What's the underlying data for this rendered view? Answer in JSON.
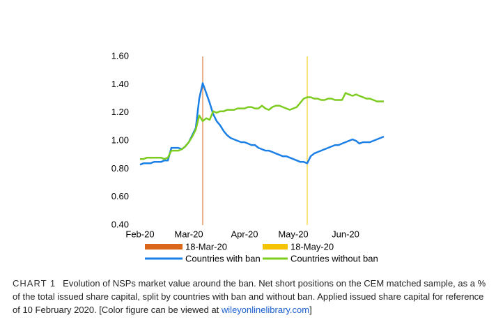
{
  "chart_data": {
    "type": "line",
    "categories": [
      "Feb-20",
      null,
      null,
      null,
      null,
      null,
      null,
      null,
      null,
      null,
      null,
      null,
      null,
      null,
      "Mar-20",
      null,
      null,
      null,
      null,
      null,
      null,
      null,
      null,
      null,
      null,
      null,
      null,
      null,
      null,
      null,
      "Apr-20",
      null,
      null,
      null,
      null,
      null,
      null,
      null,
      null,
      null,
      null,
      null,
      null,
      null,
      "May-20",
      null,
      null,
      null,
      null,
      null,
      null,
      null,
      null,
      null,
      null,
      null,
      null,
      null,
      null,
      "Jun-20",
      null,
      null,
      null,
      null,
      null,
      null,
      null,
      null,
      null,
      null,
      null
    ],
    "series": [
      {
        "name": "Countries with ban",
        "color": "#1a7fe6",
        "values": [
          0.83,
          0.84,
          0.84,
          0.84,
          0.85,
          0.85,
          0.85,
          0.86,
          0.86,
          0.95,
          0.95,
          0.95,
          0.94,
          0.96,
          0.99,
          1.04,
          1.09,
          1.3,
          1.41,
          1.34,
          1.27,
          1.19,
          1.14,
          1.11,
          1.07,
          1.04,
          1.02,
          1.01,
          1.0,
          0.99,
          0.99,
          0.98,
          0.97,
          0.97,
          0.95,
          0.94,
          0.93,
          0.93,
          0.92,
          0.91,
          0.9,
          0.89,
          0.89,
          0.88,
          0.87,
          0.86,
          0.85,
          0.85,
          0.84,
          0.89,
          0.91,
          0.92,
          0.93,
          0.94,
          0.95,
          0.96,
          0.97,
          0.97,
          0.98,
          0.99,
          1.0,
          1.01,
          1.0,
          0.98,
          0.99,
          0.99,
          0.99,
          1.0,
          1.01,
          1.02,
          1.03
        ]
      },
      {
        "name": "Countries without ban",
        "color": "#7ccc1f",
        "values": [
          0.87,
          0.87,
          0.88,
          0.88,
          0.88,
          0.88,
          0.88,
          0.87,
          0.88,
          0.93,
          0.93,
          0.93,
          0.94,
          0.96,
          0.99,
          1.03,
          1.08,
          1.18,
          1.14,
          1.16,
          1.15,
          1.21,
          1.2,
          1.21,
          1.21,
          1.22,
          1.22,
          1.22,
          1.23,
          1.23,
          1.23,
          1.24,
          1.24,
          1.23,
          1.23,
          1.25,
          1.23,
          1.22,
          1.24,
          1.25,
          1.25,
          1.24,
          1.23,
          1.22,
          1.23,
          1.24,
          1.27,
          1.3,
          1.31,
          1.31,
          1.3,
          1.3,
          1.29,
          1.29,
          1.3,
          1.3,
          1.29,
          1.29,
          1.29,
          1.34,
          1.33,
          1.32,
          1.33,
          1.32,
          1.31,
          1.3,
          1.3,
          1.29,
          1.28,
          1.28,
          1.28
        ]
      }
    ],
    "vlines": [
      {
        "name": "18-Mar-20",
        "color": "#d9661a",
        "x": 18
      },
      {
        "name": "18-May-20",
        "color": "#f5c400",
        "x": 48
      }
    ],
    "ylim": [
      0.4,
      1.6
    ],
    "yticks": [
      {
        "value": 0.4,
        "label": "0.40"
      },
      {
        "value": 0.6,
        "label": "0.60"
      },
      {
        "value": 0.8,
        "label": "0.80"
      },
      {
        "value": 1.0,
        "label": "1.00"
      },
      {
        "value": 1.2,
        "label": "1.20"
      },
      {
        "value": 1.4,
        "label": "1.40"
      },
      {
        "value": 1.6,
        "label": "1.60"
      }
    ],
    "grid": false
  },
  "caption": {
    "label": "CHART 1",
    "text": "Evolution of NSPs market value around the ban. Net short positions on the CEM matched sample, as a % of the total issued share capital, split by countries with ban and without ban. Applied issued share capital for reference of 10 February 2020. [Color figure can be viewed at ",
    "link": "wileyonlinelibrary.com",
    "end": "]"
  }
}
